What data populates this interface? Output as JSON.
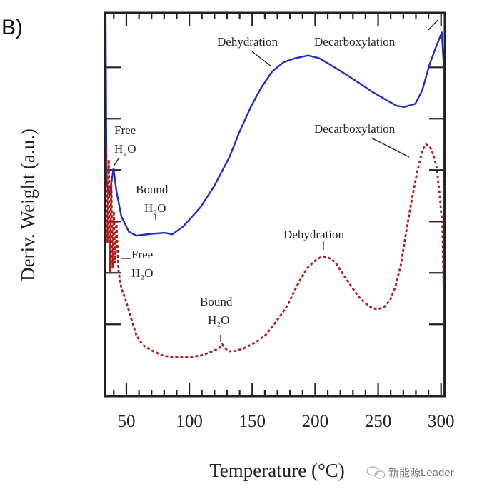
{
  "panel_label": "B)",
  "watermark": {
    "text": "新能源Leader",
    "icon": "wechat-icon"
  },
  "chart_data": {
    "type": "line",
    "title": "",
    "xlabel": "Temperature (°C)",
    "ylabel": "Deriv. Weight (a.u.)",
    "xlim": [
      33,
      303
    ],
    "ylim": [
      0,
      7.46
    ],
    "xticks": [
      50,
      100,
      150,
      200,
      250,
      300
    ],
    "xtick_labels": [
      "50",
      "100",
      "150",
      "200",
      "250",
      "300"
    ],
    "yticks": [
      1.4,
      2.4,
      3.4,
      4.4,
      5.4,
      6.4
    ],
    "grid": false,
    "colors": {
      "blue": "#1f2fbf",
      "red": "#b01c1c"
    },
    "series": [
      {
        "style": "solid",
        "color": "#1f2fbf",
        "x": [
          33.5,
          34.2,
          34.7,
          36.5,
          39.8,
          42,
          46,
          52,
          58,
          70,
          80.7,
          86.4,
          95,
          109,
          120,
          131.8,
          140,
          148.9,
          157,
          165.9,
          175,
          183,
          194.3,
          203,
          211.4,
          222,
          234,
          245,
          256.8,
          265,
          271,
          279.5,
          285,
          290.9,
          296,
          300.6,
          302,
          302.5,
          302.5
        ],
        "y": [
          7.46,
          4.2,
          4.1,
          3.9,
          4.43,
          4.0,
          3.5,
          3.2,
          3.125,
          3.16,
          3.18,
          3.15,
          3.3,
          3.68,
          4.1,
          4.65,
          5.15,
          5.63,
          6.0,
          6.32,
          6.5,
          6.57,
          6.63,
          6.58,
          6.46,
          6.3,
          6.11,
          5.93,
          5.76,
          5.65,
          5.63,
          5.69,
          5.95,
          6.46,
          6.8,
          7.08,
          6.5,
          4.0,
          0
        ]
      },
      {
        "style": "dashed",
        "color": "#b01c1c",
        "x": [
          34,
          35,
          36,
          37,
          38,
          39,
          40,
          41,
          42,
          43.75,
          46,
          49.4,
          54,
          58,
          63,
          69.3,
          78,
          86.4,
          98,
          109,
          116,
          123.3,
          126.1,
          130.7,
          136,
          143.2,
          152,
          160.2,
          168,
          177.3,
          183,
          188.6,
          194,
          200,
          204,
          208.5,
          213,
          217,
          222,
          228.4,
          234,
          239.8,
          245,
          249.4,
          255,
          259.7,
          264,
          268.2,
          272,
          276.7,
          281,
          285.2,
          288,
          290.9,
          294,
          296.6,
          299,
          301.1,
          303
        ],
        "y": [
          4.8,
          3.0,
          4.6,
          2.4,
          4.2,
          2.5,
          3.6,
          2.6,
          3.4,
          2.43,
          2.1,
          1.875,
          1.5,
          1.18,
          1.0,
          0.9,
          0.8,
          0.76,
          0.76,
          0.79,
          0.85,
          0.93,
          1.01,
          0.875,
          0.88,
          0.93,
          1.04,
          1.18,
          1.42,
          1.74,
          2.02,
          2.29,
          2.5,
          2.64,
          2.7,
          2.71,
          2.67,
          2.57,
          2.38,
          2.15,
          1.95,
          1.81,
          1.72,
          1.69,
          1.74,
          1.875,
          2.15,
          2.57,
          3.15,
          3.82,
          4.35,
          4.79,
          4.9,
          4.86,
          4.7,
          4.44,
          3.9,
          3.26,
          0.9
        ]
      }
    ],
    "annotations": {
      "blue_free_1": "Free",
      "blue_free_2": "H₂O",
      "blue_bound_1": "Bound",
      "blue_bound_2": "H₂O",
      "blue_dehydration": "Dehydration",
      "blue_decarboxylation": "Decarboxylation",
      "red_free_1": "Free",
      "red_free_2": "H₂O",
      "red_bound_1": "Bound",
      "red_bound_2": "H₂O",
      "red_dehydration": "Dehydration",
      "red_decarboxylation": "Decarboxylation"
    }
  }
}
